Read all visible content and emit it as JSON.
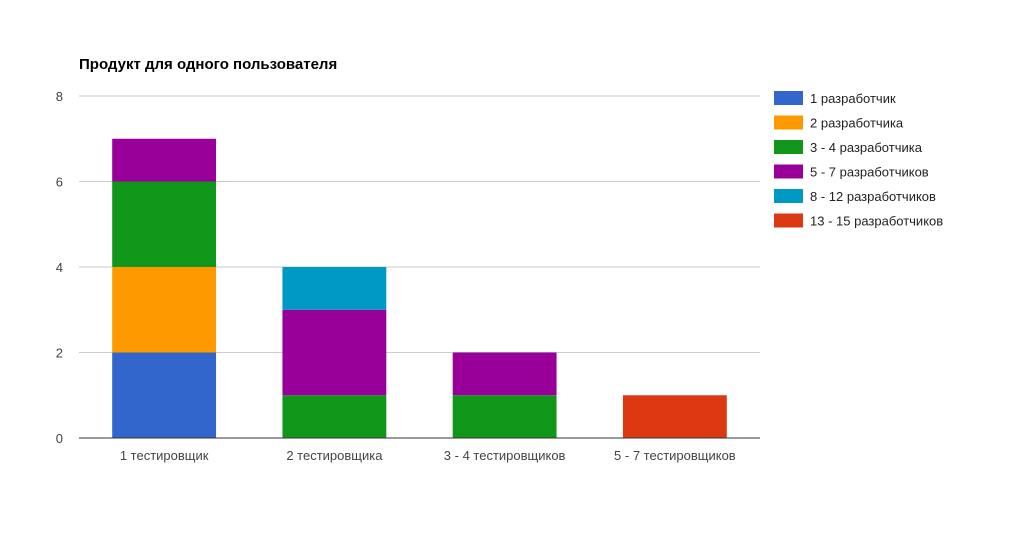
{
  "chart_data": {
    "type": "bar",
    "stacked": true,
    "title": "Продукт для одного пользователя",
    "xlabel": "",
    "ylabel": "",
    "ylim": [
      0,
      8
    ],
    "yticks": [
      "0",
      "2",
      "4",
      "6",
      "8"
    ],
    "grid": true,
    "legend_position": "right",
    "categories": [
      "1 тестировщик",
      "2 тестировщика",
      "3 - 4 тестировщиков",
      "5 - 7 тестировщиков"
    ],
    "series": [
      {
        "name": "1 разработчик",
        "color": "#3366cc",
        "values": [
          2,
          0,
          0,
          0
        ]
      },
      {
        "name": "2 разработчика",
        "color": "#ff9900",
        "values": [
          2,
          0,
          0,
          0
        ]
      },
      {
        "name": "3 - 4 разработчика",
        "color": "#109618",
        "values": [
          2,
          1,
          1,
          0
        ]
      },
      {
        "name": "5 - 7 разработчиков",
        "color": "#990099",
        "values": [
          1,
          2,
          1,
          0
        ]
      },
      {
        "name": "8 - 12 разработчиков",
        "color": "#0099c6",
        "values": [
          0,
          1,
          0,
          0
        ]
      },
      {
        "name": "13 - 15 разработчиков",
        "color": "#dc3912",
        "values": [
          0,
          0,
          0,
          1
        ]
      }
    ]
  }
}
